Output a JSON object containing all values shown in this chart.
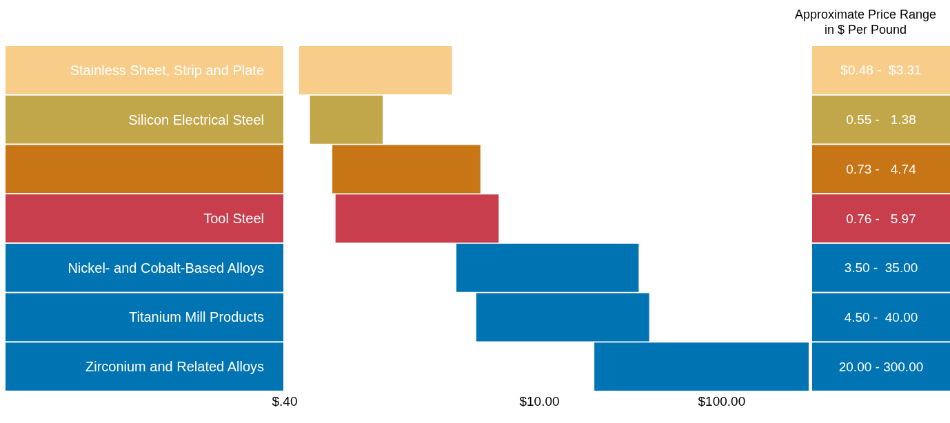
{
  "chart_data": {
    "type": "bar",
    "orientation": "horizontal",
    "log": "x",
    "categories": [
      "Stainless Sheet, Strip and Plate",
      "Silicon Electrical Steel",
      null,
      "Tool Steel",
      "Nickel- and Cobalt-Based Alloys",
      "Titanium Mill Products",
      "Zirconium and Related Alloys"
    ],
    "base": [
      0.48,
      0.55,
      0.73,
      0.76,
      3.5,
      4.5,
      20
    ],
    "values": [
      2.83,
      0.83,
      4.01,
      5.21,
      31.5,
      35.5,
      280
    ],
    "colors": [
      "#f8cd8a",
      "#c2a74a",
      "#c87516",
      "#c83e4c",
      "#0074b3",
      "#0074b3",
      "#0074b3"
    ],
    "xlim": [
      0.4,
      300
    ],
    "xticks": [
      {
        "value": 0.4,
        "label": "$.40"
      },
      {
        "value": 10,
        "label": "$10.00"
      },
      {
        "value": 100,
        "label": "$100.00"
      }
    ],
    "annotations": [
      "Approximate Price Range in $ Per Pound",
      "$0.48 -  $3.31",
      "0.55 -   1.38",
      "0.73 -   4.74",
      "0.76 -   5.97",
      "3.50 -  35.00",
      "4.50 -  40.00",
      "20.00 - 300.00"
    ]
  }
}
